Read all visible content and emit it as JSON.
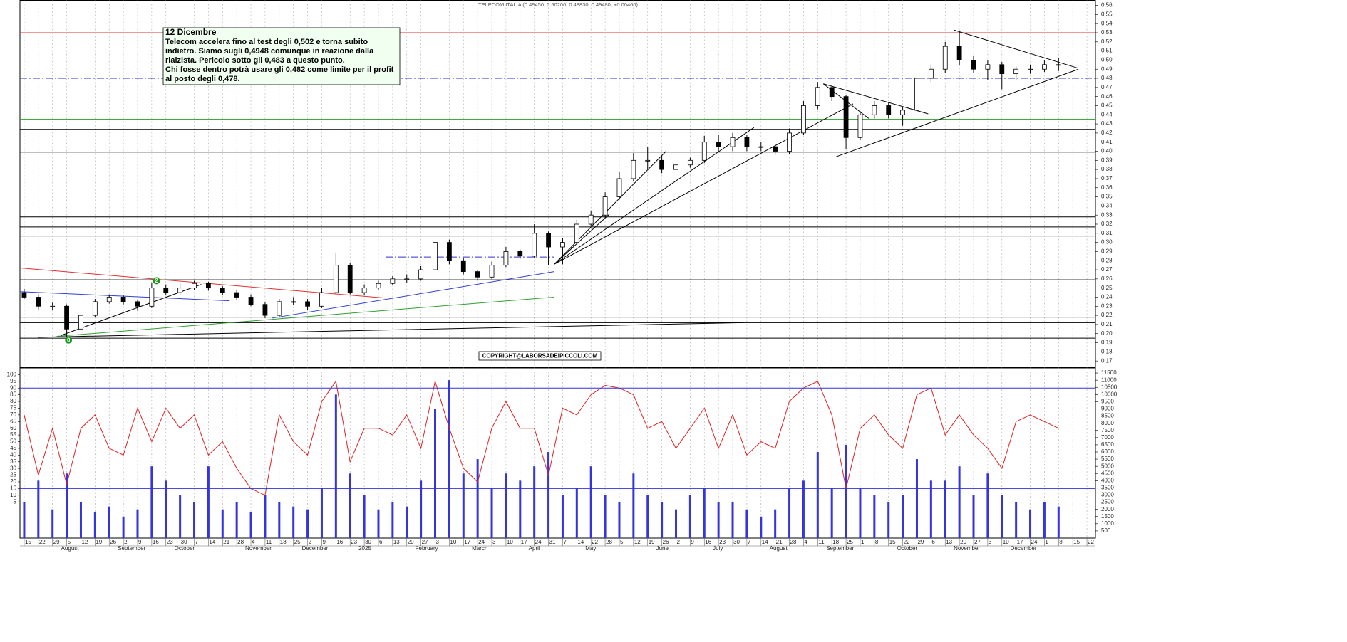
{
  "chart_data": {
    "type": "candlestick",
    "title": "TELECOM ITALIA (0.49450, 0.50200, 0.48830, 0.49480, +0.00460)",
    "categories": [
      "15",
      "22",
      "29",
      "5",
      "12",
      "19",
      "26",
      "2",
      "9",
      "16",
      "23",
      "30",
      "7",
      "14",
      "21",
      "28",
      "4",
      "11",
      "18",
      "25",
      "2",
      "9",
      "16",
      "23",
      "30",
      "6",
      "13",
      "20",
      "27",
      "3",
      "10",
      "17",
      "24",
      "3",
      "10",
      "17",
      "24",
      "31",
      "7",
      "14",
      "22",
      "28",
      "5",
      "12",
      "19",
      "26",
      "2",
      "9",
      "16",
      "23",
      "30",
      "7",
      "14",
      "21",
      "28",
      "4",
      "11",
      "18",
      "25",
      "1",
      "8",
      "15",
      "22",
      "29",
      "6",
      "13",
      "20",
      "27",
      "3",
      "10",
      "17",
      "24",
      "1",
      "8",
      "15",
      "22"
    ],
    "month_labels": [
      null,
      null,
      null,
      "August",
      null,
      null,
      null,
      "September",
      null,
      null,
      null,
      "October",
      null,
      null,
      null,
      null,
      "November",
      null,
      null,
      null,
      "December",
      null,
      null,
      null,
      "2025",
      null,
      null,
      null,
      "February",
      null,
      null,
      null,
      "March",
      null,
      null,
      null,
      "April",
      null,
      null,
      null,
      "May",
      null,
      null,
      null,
      null,
      "June",
      null,
      null,
      null,
      "July",
      null,
      null,
      null,
      "August",
      null,
      null,
      null,
      "September",
      null,
      null,
      null,
      null,
      "October",
      null,
      null,
      null,
      "November",
      null,
      null,
      null,
      "December",
      null,
      null,
      null,
      null,
      null
    ],
    "open": [
      0.245,
      0.24,
      0.23,
      0.23,
      0.205,
      0.22,
      0.235,
      0.24,
      0.235,
      0.23,
      0.25,
      0.245,
      0.25,
      0.255,
      0.25,
      0.245,
      0.24,
      0.232,
      0.22,
      0.235,
      0.235,
      0.23,
      0.245,
      0.275,
      0.245,
      0.25,
      0.255,
      0.26,
      0.26,
      0.27,
      0.3,
      0.28,
      0.268,
      0.262,
      0.275,
      0.29,
      0.285,
      0.31,
      0.295,
      0.3,
      0.32,
      0.33,
      0.35,
      0.37,
      0.39,
      0.39,
      0.38,
      0.385,
      0.39,
      0.41,
      0.405,
      0.415,
      0.405,
      0.405,
      0.4,
      0.42,
      0.45,
      0.47,
      0.46,
      0.415,
      0.44,
      0.45,
      0.44,
      0.445,
      0.48,
      0.49,
      0.515,
      0.5,
      0.49,
      0.495,
      0.485,
      0.49,
      0.49,
      0.495,
      null,
      null
    ],
    "high": [
      0.249,
      0.243,
      0.234,
      0.232,
      0.222,
      0.238,
      0.243,
      0.242,
      0.237,
      0.256,
      0.254,
      0.255,
      0.258,
      0.257,
      0.252,
      0.248,
      0.243,
      0.235,
      0.238,
      0.24,
      0.238,
      0.25,
      0.288,
      0.278,
      0.254,
      0.258,
      0.263,
      0.265,
      0.274,
      0.318,
      0.303,
      0.283,
      0.27,
      0.279,
      0.295,
      0.292,
      0.32,
      0.312,
      0.305,
      0.325,
      0.335,
      0.355,
      0.377,
      0.398,
      0.405,
      0.395,
      0.389,
      0.393,
      0.417,
      0.418,
      0.42,
      0.418,
      0.41,
      0.408,
      0.425,
      0.455,
      0.476,
      0.472,
      0.462,
      0.444,
      0.455,
      0.453,
      0.448,
      0.485,
      0.495,
      0.52,
      0.532,
      0.505,
      0.5,
      0.498,
      0.493,
      0.495,
      0.5,
      0.502,
      null,
      null
    ],
    "low": [
      0.238,
      0.226,
      0.226,
      0.197,
      0.203,
      0.218,
      0.233,
      0.232,
      0.225,
      0.228,
      0.242,
      0.243,
      0.248,
      0.247,
      0.242,
      0.237,
      0.23,
      0.217,
      0.218,
      0.231,
      0.226,
      0.228,
      0.243,
      0.243,
      0.242,
      0.248,
      0.253,
      0.256,
      0.258,
      0.268,
      0.276,
      0.265,
      0.258,
      0.26,
      0.273,
      0.282,
      0.283,
      0.275,
      0.276,
      0.298,
      0.318,
      0.327,
      0.347,
      0.367,
      0.38,
      0.376,
      0.378,
      0.382,
      0.387,
      0.4,
      0.4,
      0.4,
      0.4,
      0.396,
      0.397,
      0.418,
      0.446,
      0.455,
      0.402,
      0.412,
      0.436,
      0.436,
      0.428,
      0.44,
      0.476,
      0.486,
      0.494,
      0.486,
      0.478,
      0.468,
      0.478,
      0.485,
      0.487,
      0.488,
      null,
      null
    ],
    "close": [
      0.24,
      0.23,
      0.23,
      0.205,
      0.22,
      0.235,
      0.24,
      0.235,
      0.23,
      0.25,
      0.245,
      0.25,
      0.255,
      0.25,
      0.245,
      0.24,
      0.232,
      0.22,
      0.235,
      0.235,
      0.23,
      0.245,
      0.275,
      0.245,
      0.25,
      0.255,
      0.26,
      0.26,
      0.27,
      0.3,
      0.28,
      0.268,
      0.262,
      0.275,
      0.29,
      0.285,
      0.31,
      0.295,
      0.3,
      0.32,
      0.33,
      0.35,
      0.37,
      0.39,
      0.39,
      0.38,
      0.385,
      0.39,
      0.41,
      0.405,
      0.415,
      0.405,
      0.405,
      0.4,
      0.42,
      0.45,
      0.47,
      0.46,
      0.415,
      0.44,
      0.45,
      0.44,
      0.445,
      0.48,
      0.49,
      0.515,
      0.5,
      0.49,
      0.495,
      0.485,
      0.49,
      0.49,
      0.495,
      0.495,
      null,
      null
    ],
    "ylim": [
      0.1627,
      0.5655
    ],
    "yticks": [
      0.17,
      0.18,
      0.19,
      {
        "value": 0.2,
        "label": "0.20"
      },
      0.21,
      0.22,
      0.23,
      0.24,
      0.25,
      0.26,
      0.27,
      0.28,
      0.29,
      {
        "value": 0.3,
        "label": "0.30"
      },
      0.31,
      0.32,
      0.33,
      0.34,
      0.35,
      0.36,
      0.37,
      0.38,
      0.39,
      {
        "value": 0.4,
        "label": "0.40"
      },
      0.41,
      0.42,
      0.43,
      0.44,
      0.45,
      0.46,
      0.47,
      0.48,
      0.49,
      {
        "value": 0.5,
        "label": "0.50"
      },
      0.51,
      0.52,
      0.53,
      0.54,
      0.55,
      0.56
    ],
    "grid": true,
    "levels": [
      {
        "value": 0.53,
        "color": "#e03030"
      },
      {
        "value": 0.48,
        "color": "#3030d0",
        "style": "dashdot"
      },
      {
        "value": 0.435,
        "color": "#20a020"
      },
      {
        "value": 0.424,
        "color": "#000000"
      },
      {
        "value": 0.399,
        "color": "#000000"
      },
      {
        "value": 0.328,
        "color": "#000000"
      },
      {
        "value": 0.317,
        "color": "#000000"
      },
      {
        "value": 0.307,
        "color": "#000000"
      },
      {
        "value": 0.259,
        "color": "#000000"
      },
      {
        "value": 0.218,
        "color": "#000000"
      },
      {
        "value": 0.212,
        "color": "#000000"
      },
      {
        "value": 0.195,
        "color": "#000000"
      }
    ],
    "trendlines": [
      {
        "x1": -0.3,
        "y1": 0.272,
        "x2": 25.5,
        "y2": 0.239,
        "color": "#e03030"
      },
      {
        "x1": -0.3,
        "y1": 0.246,
        "x2": 14.5,
        "y2": 0.236,
        "color": "#3040d0"
      },
      {
        "x1": 17.5,
        "y1": 0.217,
        "x2": 37.4,
        "y2": 0.268,
        "color": "#3040d0"
      },
      {
        "x1": 2.3,
        "y1": 0.197,
        "x2": 37.4,
        "y2": 0.24,
        "color": "#30a030"
      },
      {
        "x1": 2.6,
        "y1": 0.198,
        "x2": 12.5,
        "y2": 0.254,
        "color": "#000000"
      },
      {
        "x1": 1,
        "y1": 0.196,
        "x2": 50.7,
        "y2": 0.212,
        "color": "#000000"
      },
      {
        "x1": 25.5,
        "y1": 0.284,
        "x2": 37.4,
        "y2": 0.284,
        "color": "#3030d0",
        "style": "dashdot"
      },
      {
        "x1": 37.4,
        "y1": 0.276,
        "x2": 41.3,
        "y2": 0.331,
        "color": "#000000"
      },
      {
        "x1": 37.4,
        "y1": 0.276,
        "x2": 45.3,
        "y2": 0.4,
        "color": "#000000"
      },
      {
        "x1": 37.4,
        "y1": 0.276,
        "x2": 51.5,
        "y2": 0.426,
        "color": "#000000"
      },
      {
        "x1": 37.4,
        "y1": 0.276,
        "x2": 58.5,
        "y2": 0.452,
        "color": "#000000"
      },
      {
        "x1": 57.3,
        "y1": 0.394,
        "x2": 74.4,
        "y2": 0.49,
        "color": "#000000"
      },
      {
        "x1": 56.4,
        "y1": 0.474,
        "x2": 63.8,
        "y2": 0.441,
        "color": "#000000"
      },
      {
        "x1": 56.4,
        "y1": 0.474,
        "x2": 59.6,
        "y2": 0.436,
        "color": "#000000"
      },
      {
        "x1": 65.6,
        "y1": 0.533,
        "x2": 74.4,
        "y2": 0.491,
        "color": "#000000"
      }
    ],
    "markers": [
      {
        "label": "2",
        "x": 9.33,
        "y": 0.258,
        "color": "#1a9a1a"
      },
      {
        "label": "0",
        "x": 3.13,
        "y": 0.193,
        "color": "#1a9a1a"
      }
    ],
    "annotation": {
      "title": "12 Dicembre",
      "lines": [
        "Telecom accelera fino al test degli 0,502 e torna subito",
        "indietro. Siamo sugli 0,4948 comunque in reazione dalla",
        "rialzista. Pericolo sotto gli 0,483 a questo punto.",
        "Chi fosse dentro potrà usare gli 0,482 come limite per il profit",
        "al posto degli 0,478."
      ]
    },
    "copyright": "COPYRIGHT@LABORSADEIPICCOLI.COM",
    "lower": {
      "ylim": [
        -22,
        105
      ],
      "yticks": [
        5,
        10,
        15,
        20,
        25,
        30,
        35,
        40,
        45,
        50,
        55,
        60,
        65,
        70,
        75,
        80,
        85,
        90,
        95,
        100
      ],
      "y2lim": [
        0,
        11850
      ],
      "y2ticks": [
        500,
        1000,
        1500,
        2000,
        2500,
        3000,
        3500,
        4000,
        4500,
        5000,
        5500,
        6000,
        6500,
        7000,
        7500,
        8000,
        8500,
        9000,
        9500,
        10000,
        10500,
        11000,
        11500
      ],
      "levels": [
        {
          "value": 90,
          "color": "#3030e0"
        },
        {
          "value": 15,
          "color": "#3030e0"
        }
      ],
      "series": [
        {
          "type": "bar",
          "axis": "y2",
          "color": "#3535e0",
          "values": [
            2500,
            4000,
            2000,
            4500,
            2500,
            1800,
            2200,
            1500,
            2000,
            5000,
            4000,
            3000,
            2500,
            5000,
            2000,
            2500,
            1800,
            3000,
            2500,
            2200,
            2000,
            3500,
            10000,
            4500,
            3000,
            2000,
            2500,
            2200,
            4000,
            9000,
            11000,
            4500,
            5500,
            3500,
            4500,
            4000,
            5000,
            6000,
            3000,
            3500,
            5000,
            3000,
            2500,
            4500,
            3000,
            2500,
            2000,
            3000,
            3500,
            2500,
            2500,
            2000,
            1500,
            2000,
            3500,
            4000,
            6000,
            3500,
            6500,
            3500,
            3000,
            2500,
            3000,
            5500,
            4000,
            4000,
            5000,
            3000,
            4500,
            3000,
            2500,
            2000,
            2500,
            2200,
            null,
            null
          ]
        },
        {
          "type": "line",
          "color": "#e02020",
          "values": [
            70,
            25,
            60,
            18,
            60,
            70,
            45,
            40,
            75,
            50,
            75,
            60,
            70,
            40,
            50,
            30,
            15,
            10,
            70,
            50,
            40,
            80,
            95,
            35,
            60,
            60,
            55,
            70,
            45,
            95,
            60,
            30,
            20,
            60,
            80,
            60,
            60,
            25,
            75,
            70,
            85,
            92,
            90,
            85,
            60,
            65,
            45,
            60,
            75,
            45,
            70,
            40,
            50,
            45,
            80,
            90,
            95,
            70,
            15,
            60,
            70,
            55,
            45,
            85,
            90,
            55,
            70,
            55,
            45,
            30,
            65,
            70,
            65,
            60,
            null,
            null
          ]
        }
      ]
    }
  }
}
